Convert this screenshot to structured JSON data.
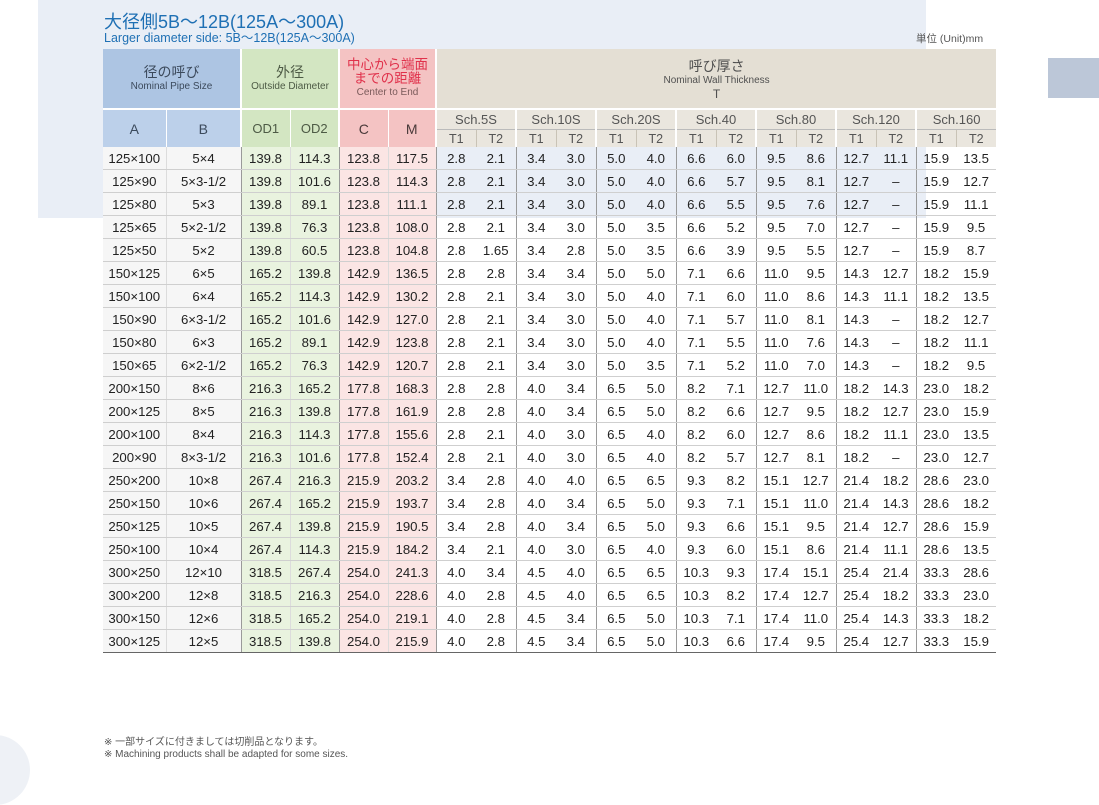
{
  "title_jp": "大径側5B～12B(125A～300A)",
  "title_en": "Larger diameter side: 5B～12B(125A～300A)",
  "unit": "単位 (Unit)mm",
  "headers": {
    "nominal_jp": "径の呼び",
    "nominal_en": "Nominal Pipe Size",
    "od_jp": "外径",
    "od_en": "Outside Diameter",
    "center_jp_1": "中心から端面",
    "center_jp_2": "までの距離",
    "center_en": "Center to End",
    "wall_jp": "呼び厚さ",
    "wall_en": "Nominal Wall Thickness",
    "wall_sym": "T",
    "col_a": "A",
    "col_b": "B",
    "col_od1": "OD1",
    "col_od2": "OD2",
    "col_c": "C",
    "col_m": "M",
    "schedules": [
      "Sch.5S",
      "Sch.10S",
      "Sch.20S",
      "Sch.40",
      "Sch.80",
      "Sch.120",
      "Sch.160"
    ],
    "t1": "T1",
    "t2": "T2"
  },
  "rows": [
    [
      "125×100",
      "5×4",
      "139.8",
      "114.3",
      "123.8",
      "117.5",
      "2.8",
      "2.1",
      "3.4",
      "3.0",
      "5.0",
      "4.0",
      "6.6",
      "6.0",
      "9.5",
      "8.6",
      "12.7",
      "11.1",
      "15.9",
      "13.5"
    ],
    [
      "125×90",
      "5×3-1/2",
      "139.8",
      "101.6",
      "123.8",
      "114.3",
      "2.8",
      "2.1",
      "3.4",
      "3.0",
      "5.0",
      "4.0",
      "6.6",
      "5.7",
      "9.5",
      "8.1",
      "12.7",
      "–",
      "15.9",
      "12.7"
    ],
    [
      "125×80",
      "5×3",
      "139.8",
      "89.1",
      "123.8",
      "111.1",
      "2.8",
      "2.1",
      "3.4",
      "3.0",
      "5.0",
      "4.0",
      "6.6",
      "5.5",
      "9.5",
      "7.6",
      "12.7",
      "–",
      "15.9",
      "11.1"
    ],
    [
      "125×65",
      "5×2-1/2",
      "139.8",
      "76.3",
      "123.8",
      "108.0",
      "2.8",
      "2.1",
      "3.4",
      "3.0",
      "5.0",
      "3.5",
      "6.6",
      "5.2",
      "9.5",
      "7.0",
      "12.7",
      "–",
      "15.9",
      "9.5"
    ],
    [
      "125×50",
      "5×2",
      "139.8",
      "60.5",
      "123.8",
      "104.8",
      "2.8",
      "1.65",
      "3.4",
      "2.8",
      "5.0",
      "3.5",
      "6.6",
      "3.9",
      "9.5",
      "5.5",
      "12.7",
      "–",
      "15.9",
      "8.7"
    ],
    [
      "150×125",
      "6×5",
      "165.2",
      "139.8",
      "142.9",
      "136.5",
      "2.8",
      "2.8",
      "3.4",
      "3.4",
      "5.0",
      "5.0",
      "7.1",
      "6.6",
      "11.0",
      "9.5",
      "14.3",
      "12.7",
      "18.2",
      "15.9"
    ],
    [
      "150×100",
      "6×4",
      "165.2",
      "114.3",
      "142.9",
      "130.2",
      "2.8",
      "2.1",
      "3.4",
      "3.0",
      "5.0",
      "4.0",
      "7.1",
      "6.0",
      "11.0",
      "8.6",
      "14.3",
      "11.1",
      "18.2",
      "13.5"
    ],
    [
      "150×90",
      "6×3-1/2",
      "165.2",
      "101.6",
      "142.9",
      "127.0",
      "2.8",
      "2.1",
      "3.4",
      "3.0",
      "5.0",
      "4.0",
      "7.1",
      "5.7",
      "11.0",
      "8.1",
      "14.3",
      "–",
      "18.2",
      "12.7"
    ],
    [
      "150×80",
      "6×3",
      "165.2",
      "89.1",
      "142.9",
      "123.8",
      "2.8",
      "2.1",
      "3.4",
      "3.0",
      "5.0",
      "4.0",
      "7.1",
      "5.5",
      "11.0",
      "7.6",
      "14.3",
      "–",
      "18.2",
      "11.1"
    ],
    [
      "150×65",
      "6×2-1/2",
      "165.2",
      "76.3",
      "142.9",
      "120.7",
      "2.8",
      "2.1",
      "3.4",
      "3.0",
      "5.0",
      "3.5",
      "7.1",
      "5.2",
      "11.0",
      "7.0",
      "14.3",
      "–",
      "18.2",
      "9.5"
    ],
    [
      "200×150",
      "8×6",
      "216.3",
      "165.2",
      "177.8",
      "168.3",
      "2.8",
      "2.8",
      "4.0",
      "3.4",
      "6.5",
      "5.0",
      "8.2",
      "7.1",
      "12.7",
      "11.0",
      "18.2",
      "14.3",
      "23.0",
      "18.2"
    ],
    [
      "200×125",
      "8×5",
      "216.3",
      "139.8",
      "177.8",
      "161.9",
      "2.8",
      "2.8",
      "4.0",
      "3.4",
      "6.5",
      "5.0",
      "8.2",
      "6.6",
      "12.7",
      "9.5",
      "18.2",
      "12.7",
      "23.0",
      "15.9"
    ],
    [
      "200×100",
      "8×4",
      "216.3",
      "114.3",
      "177.8",
      "155.6",
      "2.8",
      "2.1",
      "4.0",
      "3.0",
      "6.5",
      "4.0",
      "8.2",
      "6.0",
      "12.7",
      "8.6",
      "18.2",
      "11.1",
      "23.0",
      "13.5"
    ],
    [
      "200×90",
      "8×3-1/2",
      "216.3",
      "101.6",
      "177.8",
      "152.4",
      "2.8",
      "2.1",
      "4.0",
      "3.0",
      "6.5",
      "4.0",
      "8.2",
      "5.7",
      "12.7",
      "8.1",
      "18.2",
      "–",
      "23.0",
      "12.7"
    ],
    [
      "250×200",
      "10×8",
      "267.4",
      "216.3",
      "215.9",
      "203.2",
      "3.4",
      "2.8",
      "4.0",
      "4.0",
      "6.5",
      "6.5",
      "9.3",
      "8.2",
      "15.1",
      "12.7",
      "21.4",
      "18.2",
      "28.6",
      "23.0"
    ],
    [
      "250×150",
      "10×6",
      "267.4",
      "165.2",
      "215.9",
      "193.7",
      "3.4",
      "2.8",
      "4.0",
      "3.4",
      "6.5",
      "5.0",
      "9.3",
      "7.1",
      "15.1",
      "11.0",
      "21.4",
      "14.3",
      "28.6",
      "18.2"
    ],
    [
      "250×125",
      "10×5",
      "267.4",
      "139.8",
      "215.9",
      "190.5",
      "3.4",
      "2.8",
      "4.0",
      "3.4",
      "6.5",
      "5.0",
      "9.3",
      "6.6",
      "15.1",
      "9.5",
      "21.4",
      "12.7",
      "28.6",
      "15.9"
    ],
    [
      "250×100",
      "10×4",
      "267.4",
      "114.3",
      "215.9",
      "184.2",
      "3.4",
      "2.1",
      "4.0",
      "3.0",
      "6.5",
      "4.0",
      "9.3",
      "6.0",
      "15.1",
      "8.6",
      "21.4",
      "11.1",
      "28.6",
      "13.5"
    ],
    [
      "300×250",
      "12×10",
      "318.5",
      "267.4",
      "254.0",
      "241.3",
      "4.0",
      "3.4",
      "4.5",
      "4.0",
      "6.5",
      "6.5",
      "10.3",
      "9.3",
      "17.4",
      "15.1",
      "25.4",
      "21.4",
      "33.3",
      "28.6"
    ],
    [
      "300×200",
      "12×8",
      "318.5",
      "216.3",
      "254.0",
      "228.6",
      "4.0",
      "2.8",
      "4.5",
      "4.0",
      "6.5",
      "6.5",
      "10.3",
      "8.2",
      "17.4",
      "12.7",
      "25.4",
      "18.2",
      "33.3",
      "23.0"
    ],
    [
      "300×150",
      "12×6",
      "318.5",
      "165.2",
      "254.0",
      "219.1",
      "4.0",
      "2.8",
      "4.5",
      "3.4",
      "6.5",
      "5.0",
      "10.3",
      "7.1",
      "17.4",
      "11.0",
      "25.4",
      "14.3",
      "33.3",
      "18.2"
    ],
    [
      "300×125",
      "12×5",
      "318.5",
      "139.8",
      "254.0",
      "215.9",
      "4.0",
      "2.8",
      "4.5",
      "3.4",
      "6.5",
      "5.0",
      "10.3",
      "6.6",
      "17.4",
      "9.5",
      "25.4",
      "12.7",
      "33.3",
      "15.9"
    ]
  ],
  "footnote_jp": "※ 一部サイズに付きましては切削品となります。",
  "footnote_en": "※ Machining products shall be adapted for some sizes."
}
